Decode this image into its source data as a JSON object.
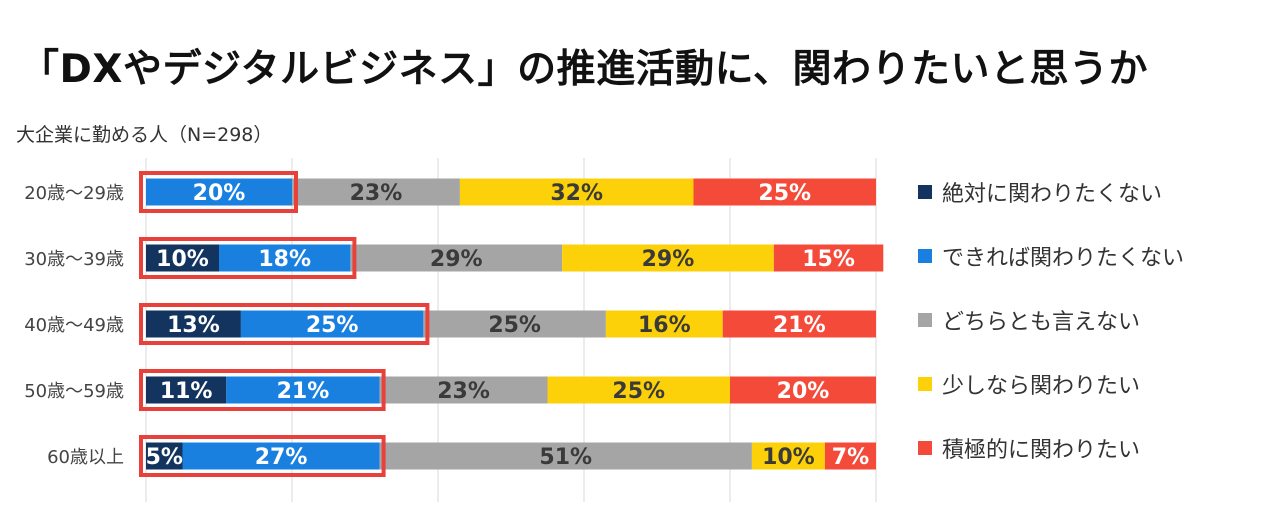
{
  "title": "「DXやデジタルビジネス」の推進活動に、関わりたいと思うか",
  "subtitle": "大企業に勤める人（N=298）",
  "chart_data": {
    "type": "bar",
    "orientation": "horizontal",
    "stacked": true,
    "percent_stacked": true,
    "grid": true,
    "legend_position": "right",
    "categories": [
      "20歳〜29歳",
      "30歳〜39歳",
      "40歳〜49歳",
      "50歳〜59歳",
      "60歳以上"
    ],
    "series": [
      {
        "name": "絶対に関わりたくない",
        "color": "#12345e",
        "values": [
          0,
          10,
          13,
          11,
          5
        ],
        "labels": [
          "",
          "10%",
          "13%",
          "11%",
          "5%"
        ]
      },
      {
        "name": "できれば関わりたくない",
        "color": "#1a80e0",
        "values": [
          20,
          18,
          25,
          21,
          27
        ],
        "labels": [
          "20%",
          "18%",
          "25%",
          "21%",
          "27%"
        ]
      },
      {
        "name": "どちらとも言えない",
        "color": "#a5a5a5",
        "values": [
          23,
          29,
          25,
          23,
          51
        ],
        "labels": [
          "23%",
          "29%",
          "25%",
          "23%",
          "51%"
        ]
      },
      {
        "name": "少しなら関わりたい",
        "color": "#fdd10a",
        "values": [
          32,
          29,
          16,
          25,
          10
        ],
        "labels": [
          "32%",
          "29%",
          "16%",
          "25%",
          "10%"
        ]
      },
      {
        "name": "積極的に関わりたい",
        "color": "#f44a3a",
        "values": [
          25,
          15,
          21,
          20,
          7
        ],
        "labels": [
          "25%",
          "15%",
          "21%",
          "20%",
          "7%"
        ]
      }
    ],
    "highlight_series": [
      "絶対に関わりたくない",
      "できれば関わりたくない"
    ],
    "highlight_color": "#e8413b"
  }
}
